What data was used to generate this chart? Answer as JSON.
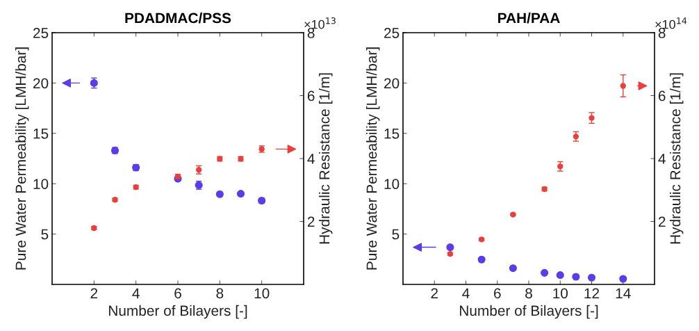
{
  "chart_data": [
    {
      "type": "scatter",
      "title": "PDADMAC/PSS",
      "xlabel": "Number of Bilayers [-]",
      "ylabel": "Pure Water Permeability [LMH/bar]",
      "y2label": "Hydraulic Resistance [1/m]",
      "annotations": [
        "×10$^{13}$"
      ],
      "marker": "circle",
      "grid": false,
      "legend": false,
      "xlim": [
        0,
        12
      ],
      "xticks": [
        2,
        4,
        6,
        8,
        10
      ],
      "ylim": [
        0,
        25
      ],
      "yticks": [
        5,
        10,
        15,
        20,
        25
      ],
      "y2lim": [
        0,
        8
      ],
      "y2ticks": [
        2,
        4,
        6,
        8
      ],
      "series": [
        {
          "color": "#5b3ce8",
          "x": [
            2,
            3,
            4,
            6,
            7,
            8,
            9,
            10
          ],
          "values": [
            20.0,
            13.3,
            11.6,
            10.5,
            9.85,
            8.96,
            9.0,
            8.32
          ],
          "errors": [
            0.5,
            0.3,
            0.3,
            0.2,
            0.4,
            0.2,
            0.2,
            0.25
          ]
        },
        {
          "color": "#e8403c",
          "axis": "y2",
          "x": [
            2,
            3,
            4,
            6,
            7,
            8,
            9,
            10
          ],
          "values": [
            1.79,
            2.69,
            3.09,
            3.43,
            3.64,
            3.99,
            3.99,
            4.3
          ],
          "errors": [
            0.05,
            0.05,
            0.06,
            0.07,
            0.13,
            0.07,
            0.07,
            0.1
          ]
        }
      ]
    },
    {
      "type": "scatter",
      "title": "PAH/PAA",
      "xlabel": "Number of Bilayers [-]",
      "ylabel": "Pure Water Permeability [LMH/bar]",
      "y2label": "Hydraulic Resistance [1/m]",
      "annotations": [
        "×10$^{14}$"
      ],
      "marker": "circle",
      "grid": false,
      "legend": false,
      "xlim": [
        0,
        16
      ],
      "xticks": [
        2,
        4,
        6,
        8,
        10,
        12,
        14
      ],
      "ylim": [
        0,
        25
      ],
      "yticks": [
        5,
        10,
        15,
        20,
        25
      ],
      "y2lim": [
        0,
        8
      ],
      "y2ticks": [
        2,
        4,
        6,
        8
      ],
      "series": [
        {
          "color": "#5b3ce8",
          "x": [
            3,
            5,
            7,
            9,
            10,
            11,
            12,
            14
          ],
          "values": [
            3.69,
            2.47,
            1.61,
            1.15,
            0.92,
            0.76,
            0.67,
            0.55
          ],
          "errors": [
            0.15,
            0.1,
            0.1,
            0.1,
            0.1,
            0.1,
            0.1,
            0.1
          ]
        },
        {
          "color": "#e8403c",
          "axis": "y2",
          "x": [
            3,
            5,
            7,
            9,
            10,
            11,
            12,
            14
          ],
          "values": [
            0.97,
            1.43,
            2.22,
            3.03,
            3.75,
            4.7,
            5.29,
            6.31
          ],
          "errors": [
            0.04,
            0.04,
            0.03,
            0.06,
            0.15,
            0.15,
            0.17,
            0.35
          ]
        }
      ]
    }
  ]
}
